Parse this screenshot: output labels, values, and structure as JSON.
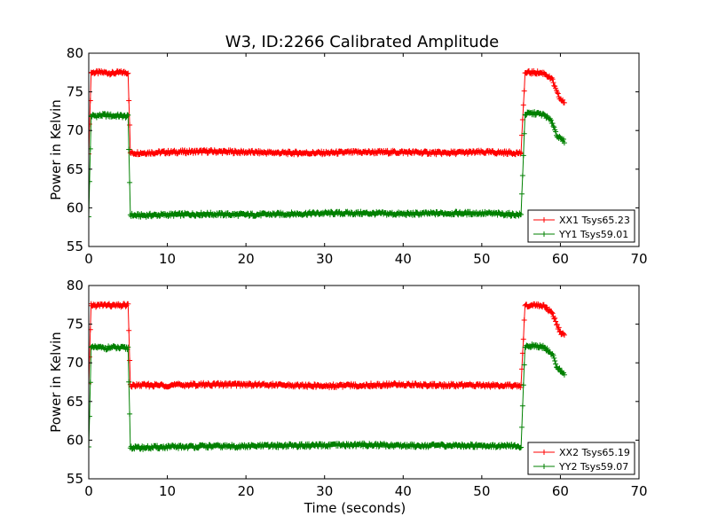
{
  "title": "W3, ID:2266 Calibrated Amplitude",
  "colors": {
    "xx": "#ff0000",
    "yy": "#008000",
    "axes": "#000000"
  },
  "chart_data": [
    {
      "type": "line",
      "ylabel": "Power in Kelvin",
      "xlabel": "",
      "xlim": [
        0,
        70
      ],
      "ylim": [
        55,
        80
      ],
      "x_ticks": [
        "0",
        "10",
        "20",
        "30",
        "40",
        "50",
        "60",
        "70"
      ],
      "y_ticks": [
        "55",
        "60",
        "65",
        "70",
        "75",
        "80"
      ],
      "legend_position": "lower-right",
      "series": [
        {
          "name": "XX1 Tsys65.23",
          "color": "#ff0000",
          "x": [
            0,
            0.3,
            1,
            2,
            3,
            4,
            5,
            5.3,
            6,
            10,
            15,
            20,
            25,
            30,
            35,
            40,
            45,
            50,
            55,
            55.5,
            56,
            57,
            58,
            59,
            59.5,
            60,
            60.5
          ],
          "y": [
            67.2,
            77.5,
            77.5,
            77.5,
            77.4,
            77.5,
            77.5,
            67.1,
            67.1,
            67.2,
            67.3,
            67.2,
            67.1,
            67.1,
            67.2,
            67.2,
            67.1,
            67.2,
            67.1,
            77.4,
            77.5,
            77.5,
            77.4,
            76.5,
            75.0,
            74.0,
            73.6
          ]
        },
        {
          "name": "YY1 Tsys59.01",
          "color": "#008000",
          "x": [
            0,
            0.3,
            1,
            2,
            3,
            4,
            5,
            5.3,
            6,
            10,
            15,
            20,
            25,
            30,
            35,
            40,
            45,
            50,
            55,
            55.5,
            56,
            57,
            58,
            59,
            59.5,
            60,
            60.5
          ],
          "y": [
            59.0,
            71.9,
            71.9,
            72.0,
            71.9,
            71.9,
            71.8,
            59.1,
            59.0,
            59.1,
            59.2,
            59.1,
            59.2,
            59.3,
            59.3,
            59.2,
            59.3,
            59.3,
            59.1,
            72.1,
            72.2,
            72.2,
            72.0,
            71.0,
            69.5,
            68.9,
            68.6
          ]
        }
      ]
    },
    {
      "type": "line",
      "ylabel": "Power in Kelvin",
      "xlabel": "Time (seconds)",
      "xlim": [
        0,
        70
      ],
      "ylim": [
        55,
        80
      ],
      "x_ticks": [
        "0",
        "10",
        "20",
        "30",
        "40",
        "50",
        "60",
        "70"
      ],
      "y_ticks": [
        "55",
        "60",
        "65",
        "70",
        "75",
        "80"
      ],
      "legend_position": "lower-right",
      "series": [
        {
          "name": "XX2 Tsys65.19",
          "color": "#ff0000",
          "x": [
            0,
            0.3,
            1,
            2,
            3,
            4,
            5,
            5.3,
            6,
            10,
            15,
            20,
            25,
            30,
            35,
            40,
            45,
            50,
            55,
            55.5,
            56,
            57,
            58,
            59,
            59.5,
            60,
            60.5
          ],
          "y": [
            67.2,
            77.5,
            77.4,
            77.5,
            77.4,
            77.4,
            77.5,
            67.0,
            67.1,
            67.1,
            67.2,
            67.2,
            67.1,
            67.0,
            67.1,
            67.2,
            67.1,
            67.1,
            67.0,
            77.4,
            77.4,
            77.5,
            77.3,
            76.4,
            75.0,
            73.9,
            73.5
          ]
        },
        {
          "name": "YY2 Tsys59.07",
          "color": "#008000",
          "x": [
            0,
            0.3,
            1,
            2,
            3,
            4,
            5,
            5.3,
            6,
            10,
            15,
            20,
            25,
            30,
            35,
            40,
            45,
            50,
            55,
            55.5,
            56,
            57,
            58,
            59,
            59.5,
            60,
            60.5
          ],
          "y": [
            59.0,
            71.9,
            72.0,
            71.9,
            72.0,
            71.9,
            71.9,
            59.1,
            59.0,
            59.1,
            59.2,
            59.2,
            59.3,
            59.3,
            59.4,
            59.3,
            59.3,
            59.3,
            59.2,
            72.1,
            72.2,
            72.2,
            72.0,
            71.0,
            69.6,
            69.0,
            68.6
          ]
        }
      ]
    }
  ]
}
